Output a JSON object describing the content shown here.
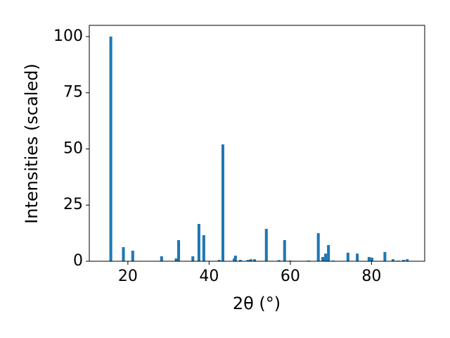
{
  "chart_data": {
    "type": "bar",
    "xlabel": "2θ (°)",
    "ylabel": "Intensities (scaled)",
    "color": "#1f77b4",
    "x": [
      15.8,
      18.9,
      21.2,
      28.3,
      31.9,
      32.5,
      36.0,
      37.5,
      38.7,
      42.5,
      43.4,
      46.2,
      46.5,
      47.7,
      49.6,
      50.3,
      51.2,
      54.1,
      57.2,
      58.6,
      60.0,
      64.5,
      66.9,
      68.0,
      68.7,
      69.4,
      70.6,
      74.2,
      76.5,
      79.4,
      80.1,
      83.3,
      85.3,
      86.6,
      87.9,
      88.8
    ],
    "values": [
      100,
      6.3,
      4.7,
      2.2,
      1.3,
      9.4,
      2.2,
      16.6,
      11.6,
      0.6,
      52,
      1.3,
      2.5,
      0.6,
      0.6,
      0.9,
      0.9,
      14.4,
      0.5,
      9.4,
      0.3,
      0.3,
      12.5,
      1.9,
      3.4,
      7.2,
      0.3,
      3.8,
      3.4,
      1.9,
      1.6,
      4.1,
      0.9,
      0.3,
      0.6,
      0.9
    ],
    "xlim": [
      10.5,
      93.1
    ],
    "xticks": [
      20,
      40,
      60,
      80
    ],
    "ylim": [
      0,
      105
    ],
    "yticks": [
      0,
      25,
      50,
      75,
      100
    ]
  }
}
